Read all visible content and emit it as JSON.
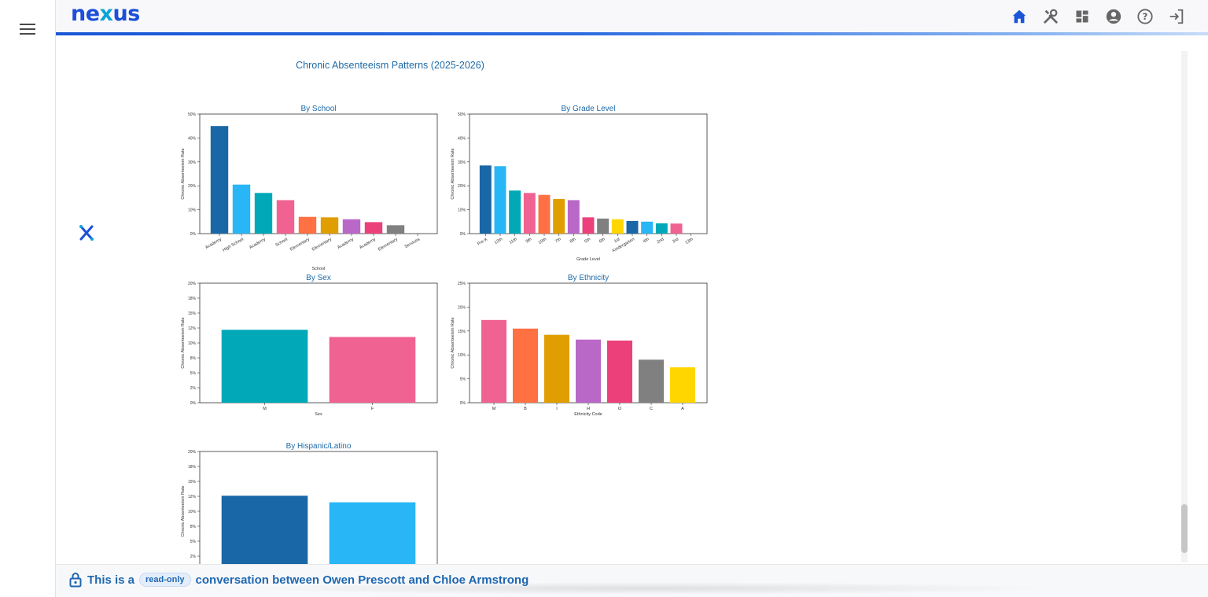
{
  "app": {
    "logo_text_left": "ne",
    "logo_text_mid": "x",
    "logo_text_right": "us"
  },
  "header": {
    "icons": [
      "home-icon",
      "tools-icon",
      "dashboard-icon",
      "account-icon",
      "help-icon",
      "logout-icon"
    ],
    "accent_color": "#1a56d6"
  },
  "figure": {
    "title": "Chronic Absenteeism Patterns (2025-2026)"
  },
  "chart_data": [
    {
      "type": "bar",
      "title": "By School",
      "xlabel": "School",
      "ylabel": "Chronic Absenteeism Rate",
      "ylim": [
        0,
        50
      ],
      "yticks": [
        "0%",
        "10%",
        "20%",
        "30%",
        "40%",
        "50%"
      ],
      "categories": [
        "Academy",
        "High School",
        "Academy",
        "School",
        "Elementary",
        "Elementary",
        "Academy",
        "Academy",
        "Elementary",
        "Services"
      ],
      "values": [
        45,
        20.5,
        17,
        14,
        7,
        6.8,
        6,
        4.8,
        3.5,
        0
      ],
      "colors": [
        "#1967a6",
        "#29b6f6",
        "#00a8b8",
        "#f06292",
        "#ff7043",
        "#e09e00",
        "#ba68c8",
        "#ec407a",
        "#808080",
        "#ffd600"
      ]
    },
    {
      "type": "bar",
      "title": "By Grade Level",
      "xlabel": "Grade Level",
      "ylabel": "Chronic Absenteeism Rate",
      "ylim": [
        0,
        50
      ],
      "yticks": [
        "0%",
        "10%",
        "20%",
        "30%",
        "40%",
        "50%"
      ],
      "categories": [
        "Pre-K",
        "12th",
        "11th",
        "9th",
        "10th",
        "7th",
        "8th",
        "5th",
        "6th",
        "1st",
        "Kindergarten",
        "4th",
        "2nd",
        "3rd",
        "13th"
      ],
      "values": [
        28.5,
        28.2,
        18,
        17,
        16.2,
        14.5,
        14,
        6.8,
        6.3,
        6,
        5.3,
        5,
        4.3,
        4.2,
        0
      ],
      "colors": [
        "#1967a6",
        "#29b6f6",
        "#00a8b8",
        "#f06292",
        "#ff7043",
        "#e09e00",
        "#ba68c8",
        "#ec407a",
        "#808080",
        "#ffd600",
        "#1967a6",
        "#29b6f6",
        "#00a8b8",
        "#f06292",
        "#ff7043"
      ]
    },
    {
      "type": "bar",
      "title": "By Sex",
      "xlabel": "Sex",
      "ylabel": "Chronic Absenteeism Rate",
      "ylim": [
        0,
        20
      ],
      "yticks": [
        "0%",
        "2%",
        "5%",
        "8%",
        "10%",
        "12%",
        "15%",
        "18%",
        "20%"
      ],
      "categories": [
        "M",
        "F"
      ],
      "values": [
        12.2,
        11
      ],
      "colors": [
        "#00a8b8",
        "#f06292"
      ]
    },
    {
      "type": "bar",
      "title": "By Ethnicity",
      "xlabel": "Ethnicity Code",
      "ylabel": "Chronic Absenteeism Rate",
      "ylim": [
        0,
        25
      ],
      "yticks": [
        "0%",
        "5%",
        "10%",
        "15%",
        "20%",
        "25%"
      ],
      "categories": [
        "M",
        "B",
        "I",
        "H",
        "O",
        "C",
        "A"
      ],
      "values": [
        17.3,
        15.5,
        14.2,
        13.2,
        13,
        9,
        7.4
      ],
      "colors": [
        "#f06292",
        "#ff7043",
        "#e09e00",
        "#ba68c8",
        "#ec407a",
        "#808080",
        "#ffd600"
      ]
    },
    {
      "type": "bar",
      "title": "By Hispanic/Latino",
      "xlabel": "",
      "ylabel": "Chronic Absenteeism Rate",
      "ylim": [
        0,
        20
      ],
      "yticks": [
        "0%",
        "2%",
        "5%",
        "8%",
        "10%",
        "12%",
        "15%",
        "18%",
        "20%"
      ],
      "categories": [
        "",
        ""
      ],
      "values": [
        12.6,
        11.5
      ],
      "colors": [
        "#1967a6",
        "#29b6f6"
      ]
    }
  ],
  "footer": {
    "prefix": "This is a",
    "badge": "read-only",
    "suffix": "conversation between Owen Prescott and Chloe Armstrong"
  }
}
